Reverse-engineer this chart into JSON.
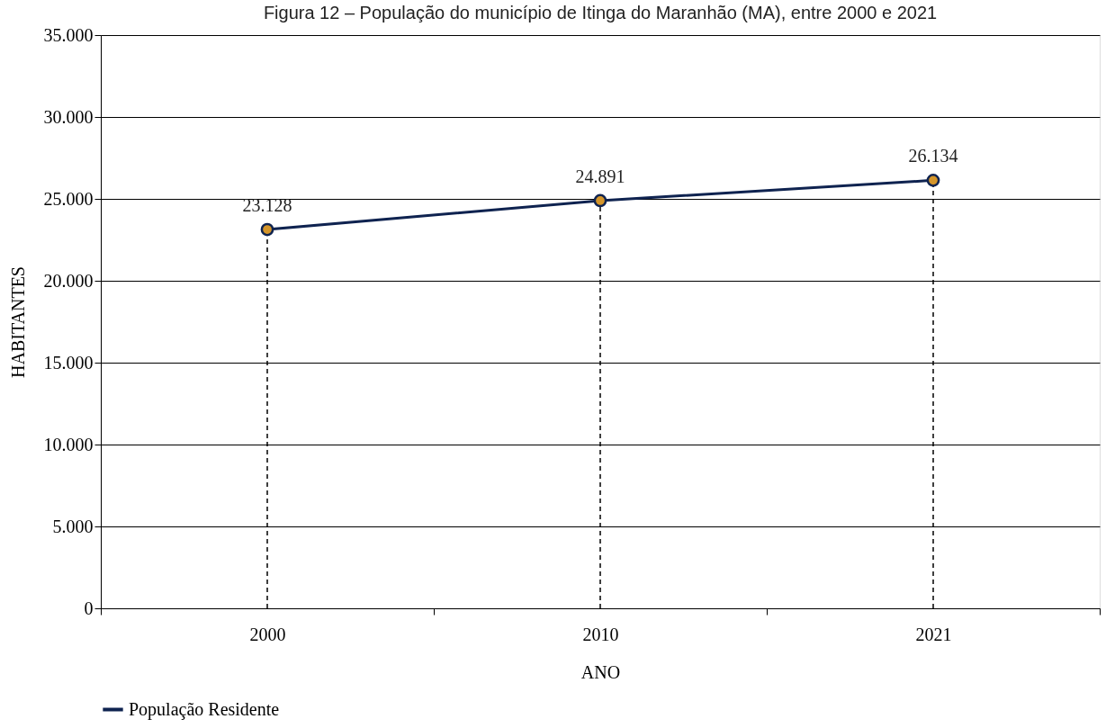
{
  "chart_data": {
    "type": "line",
    "title": "Figura 12 – População do município de Itinga do Maranhão (MA), entre 2000 e 2021",
    "xlabel": "ANO",
    "ylabel": "HABITANTES",
    "categories": [
      "2000",
      "2010",
      "2021"
    ],
    "series": [
      {
        "name": "População Residente",
        "color": "#0f2350",
        "values": [
          23128,
          24891,
          26134
        ]
      }
    ],
    "value_labels": [
      "23.128",
      "24.891",
      "26.134"
    ],
    "ylim": [
      0,
      35000
    ],
    "yticks": [
      {
        "value": 0,
        "label": "0"
      },
      {
        "value": 5000,
        "label": "5.000"
      },
      {
        "value": 10000,
        "label": "10.000"
      },
      {
        "value": 15000,
        "label": "15.000"
      },
      {
        "value": 20000,
        "label": "20.000"
      },
      {
        "value": 25000,
        "label": "25.000"
      },
      {
        "value": 30000,
        "label": "30.000"
      },
      {
        "value": 35000,
        "label": "35.000"
      }
    ],
    "ref_lines": [
      {
        "axis": "x",
        "value": "2000",
        "line_style": "dashed",
        "color": "#000000"
      },
      {
        "axis": "x",
        "value": "2010",
        "line_style": "dashed",
        "color": "#000000"
      },
      {
        "axis": "x",
        "value": "2021",
        "line_style": "dashed",
        "color": "#000000"
      }
    ],
    "grid": "y",
    "legend": "bottom",
    "marker": "circle",
    "line_style": "solid"
  }
}
